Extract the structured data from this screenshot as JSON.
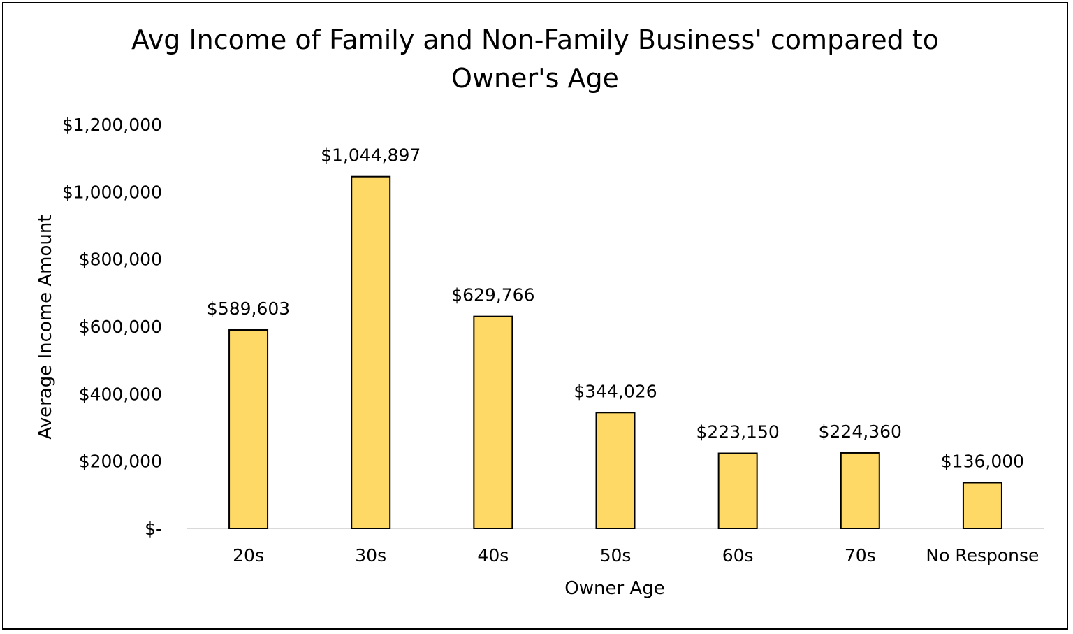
{
  "chart_data": {
    "type": "bar",
    "title": "Avg Income of Family and Non-Family Business' compared to\nOwner's Age",
    "xlabel": "Owner Age",
    "ylabel": "Average Income Amount",
    "categories": [
      "20s",
      "30s",
      "40s",
      "50s",
      "60s",
      "70s",
      "No Response"
    ],
    "values": [
      589603,
      1044897,
      629766,
      344026,
      223150,
      224360,
      136000
    ],
    "data_labels": [
      "$589,603",
      "$1,044,897",
      "$629,766",
      "$344,026",
      "$223,150",
      "$224,360",
      "$136,000"
    ],
    "y_ticks": [
      0,
      200000,
      400000,
      600000,
      800000,
      1000000,
      1200000
    ],
    "y_tick_labels": [
      "$-",
      "$200,000",
      "$400,000",
      "$600,000",
      "$800,000",
      "$1,000,000",
      "$1,200,000"
    ],
    "ylim": [
      0,
      1200000
    ],
    "grid": false,
    "legend": "none",
    "bar_color": "#FFD966",
    "bar_edge_color": "#000000"
  }
}
